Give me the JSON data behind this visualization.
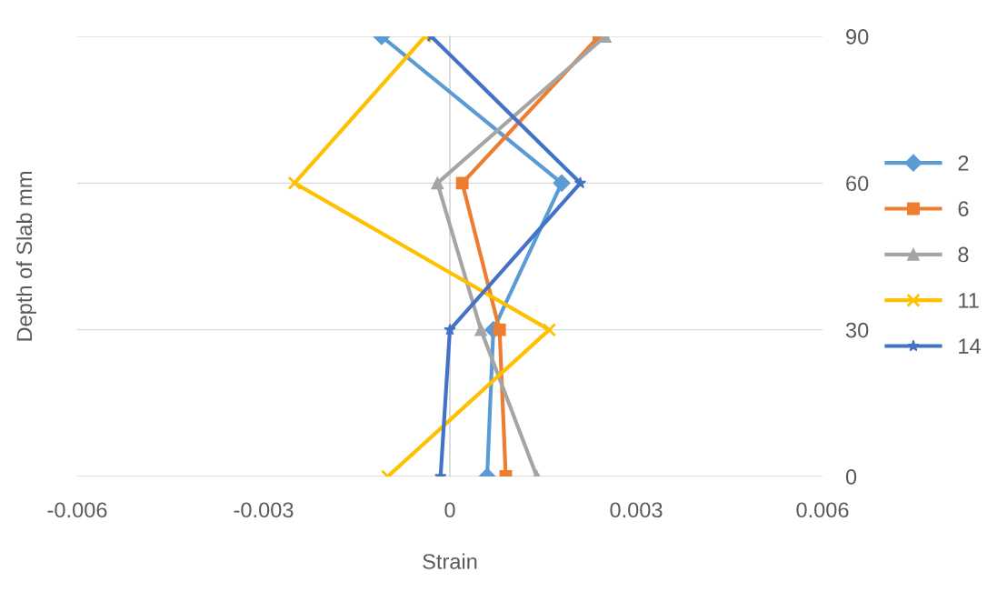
{
  "chart_data": {
    "type": "line",
    "xlabel": "Strain",
    "ylabel": "Depth of Slab mm",
    "xlim": [
      -0.006,
      0.006
    ],
    "xticks": [
      -0.006,
      -0.003,
      0,
      0.003,
      0.006
    ],
    "ylim": [
      0,
      90
    ],
    "yticks": [
      0,
      30,
      60,
      90
    ],
    "grid": "y",
    "legend": "right",
    "line_style": "solid",
    "series": [
      {
        "name": "2",
        "color": "#5b9bd5",
        "marker": "diamond",
        "x": [
          -0.0011,
          0.0018,
          0.0007,
          0.0006
        ],
        "values": [
          90,
          60,
          30,
          0
        ]
      },
      {
        "name": "6",
        "color": "#ed7d31",
        "marker": "square",
        "x": [
          0.0024,
          0.0002,
          0.0008,
          0.0009
        ],
        "values": [
          90,
          60,
          30,
          0
        ]
      },
      {
        "name": "8",
        "color": "#a5a5a5",
        "marker": "triangle",
        "x": [
          0.0025,
          -0.0002,
          0.0005,
          0.0014
        ],
        "values": [
          90,
          60,
          30,
          0
        ]
      },
      {
        "name": "11",
        "color": "#ffc000",
        "marker": "cross",
        "x": [
          -0.0004,
          -0.0025,
          0.0016,
          -0.001
        ],
        "values": [
          90,
          60,
          30,
          0
        ]
      },
      {
        "name": "14",
        "color": "#4472c4",
        "marker": "star",
        "x": [
          -0.0003,
          0.0021,
          0.0,
          -0.00015
        ],
        "values": [
          90,
          60,
          30,
          0
        ]
      }
    ]
  }
}
